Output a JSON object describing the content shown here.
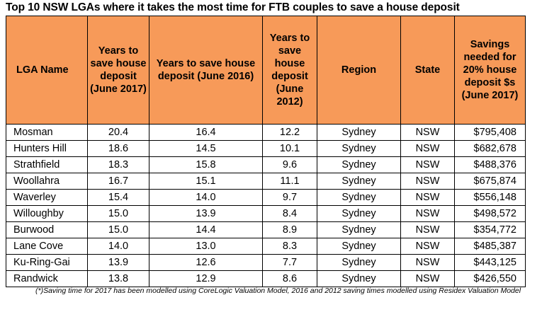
{
  "title": "Top 10 NSW LGAs where it takes the most time for FTB couples to save a house deposit",
  "table": {
    "headers": [
      "LGA Name",
      "Years to save house deposit (June 2017)",
      "Years to save house deposit (June 2016)",
      "Years to save house deposit (June 2012)",
      "Region",
      "State",
      "Savings needed for 20% house deposit $s (June 2017)"
    ],
    "rows": [
      [
        "Mosman",
        "20.4",
        "16.4",
        "12.2",
        "Sydney",
        "NSW",
        "$795,408"
      ],
      [
        "Hunters Hill",
        "18.6",
        "14.5",
        "10.1",
        "Sydney",
        "NSW",
        "$682,678"
      ],
      [
        "Strathfield",
        "18.3",
        "15.8",
        "9.6",
        "Sydney",
        "NSW",
        "$488,376"
      ],
      [
        "Woollahra",
        "16.7",
        "15.1",
        "11.1",
        "Sydney",
        "NSW",
        "$675,874"
      ],
      [
        "Waverley",
        "15.4",
        "14.0",
        "9.7",
        "Sydney",
        "NSW",
        "$556,148"
      ],
      [
        "Willoughby",
        "15.0",
        "13.9",
        "8.4",
        "Sydney",
        "NSW",
        "$498,572"
      ],
      [
        "Burwood",
        "15.0",
        "14.4",
        "8.9",
        "Sydney",
        "NSW",
        "$354,772"
      ],
      [
        "Lane Cove",
        "14.0",
        "13.0",
        "8.3",
        "Sydney",
        "NSW",
        "$485,387"
      ],
      [
        "Ku-Ring-Gai",
        "13.9",
        "12.6",
        "7.7",
        "Sydney",
        "NSW",
        "$443,125"
      ],
      [
        "Randwick",
        "13.8",
        "12.9",
        "8.6",
        "Sydney",
        "NSW",
        "$426,550"
      ]
    ]
  },
  "footnote": "(*)Saving time for 2017 has been modelled using CoreLogic Valuation Model, 2016 and 2012 saving times modelled using Residex Valuation Model",
  "colors": {
    "header_bg": "#f79a59"
  }
}
